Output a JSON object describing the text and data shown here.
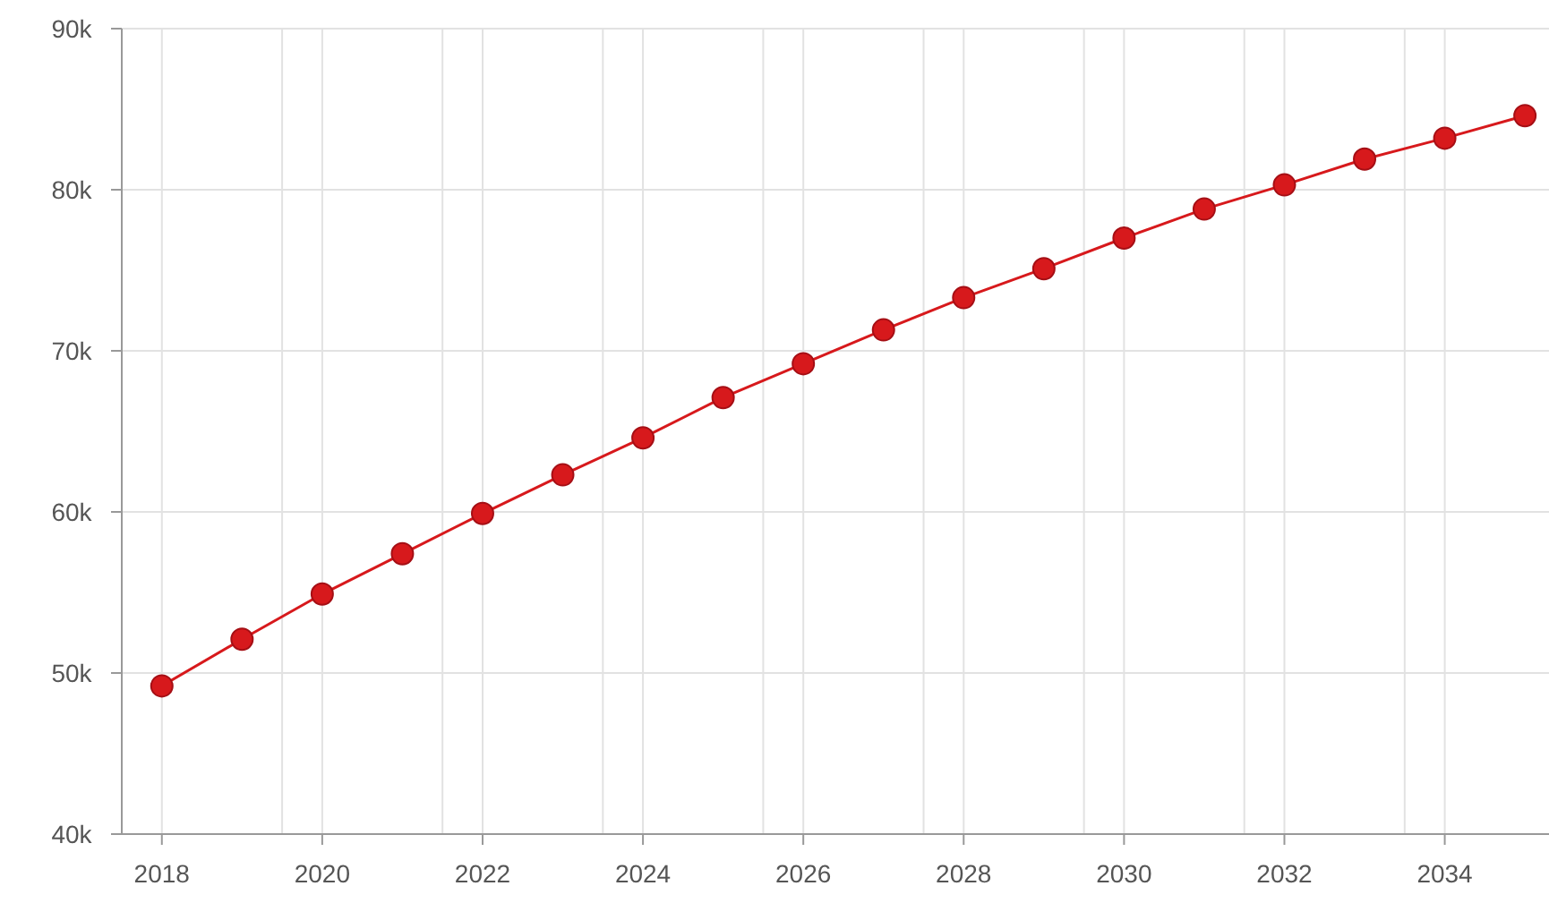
{
  "chart_data": {
    "type": "line",
    "x": [
      2018,
      2019,
      2020,
      2021,
      2022,
      2023,
      2024,
      2025,
      2026,
      2027,
      2028,
      2029,
      2030,
      2031,
      2032,
      2033,
      2034,
      2035
    ],
    "series": [
      {
        "color": "#d7191c",
        "values": [
          49.2,
          52.1,
          54.9,
          57.4,
          59.9,
          62.3,
          64.6,
          67.1,
          69.2,
          71.3,
          73.3,
          75.1,
          77.0,
          78.8,
          80.3,
          81.9,
          83.2,
          84.6
        ]
      }
    ],
    "xlim": [
      2017.5,
      2035.3
    ],
    "xticks": [
      2018,
      {
        "value": 2019.5,
        "label": null
      },
      2020,
      {
        "value": 2021.5,
        "label": null
      },
      2022,
      {
        "value": 2023.5,
        "label": null
      },
      2024,
      {
        "value": 2025.5,
        "label": null
      },
      2026,
      {
        "value": 2027.5,
        "label": null
      },
      2028,
      {
        "value": 2029.5,
        "label": null
      },
      2030,
      {
        "value": 2031.5,
        "label": null
      },
      2032,
      {
        "value": 2033.5,
        "label": null
      },
      2034
    ],
    "ylim": [
      40,
      90
    ],
    "yticks": [
      {
        "value": 40,
        "label": "40k"
      },
      {
        "value": 50,
        "label": "50k"
      },
      {
        "value": 60,
        "label": "60k"
      },
      {
        "value": 70,
        "label": "70k"
      },
      {
        "value": 80,
        "label": "80k"
      },
      {
        "value": 90,
        "label": "90k"
      }
    ],
    "grid": true,
    "marker": "circle",
    "line_style": "solid"
  }
}
